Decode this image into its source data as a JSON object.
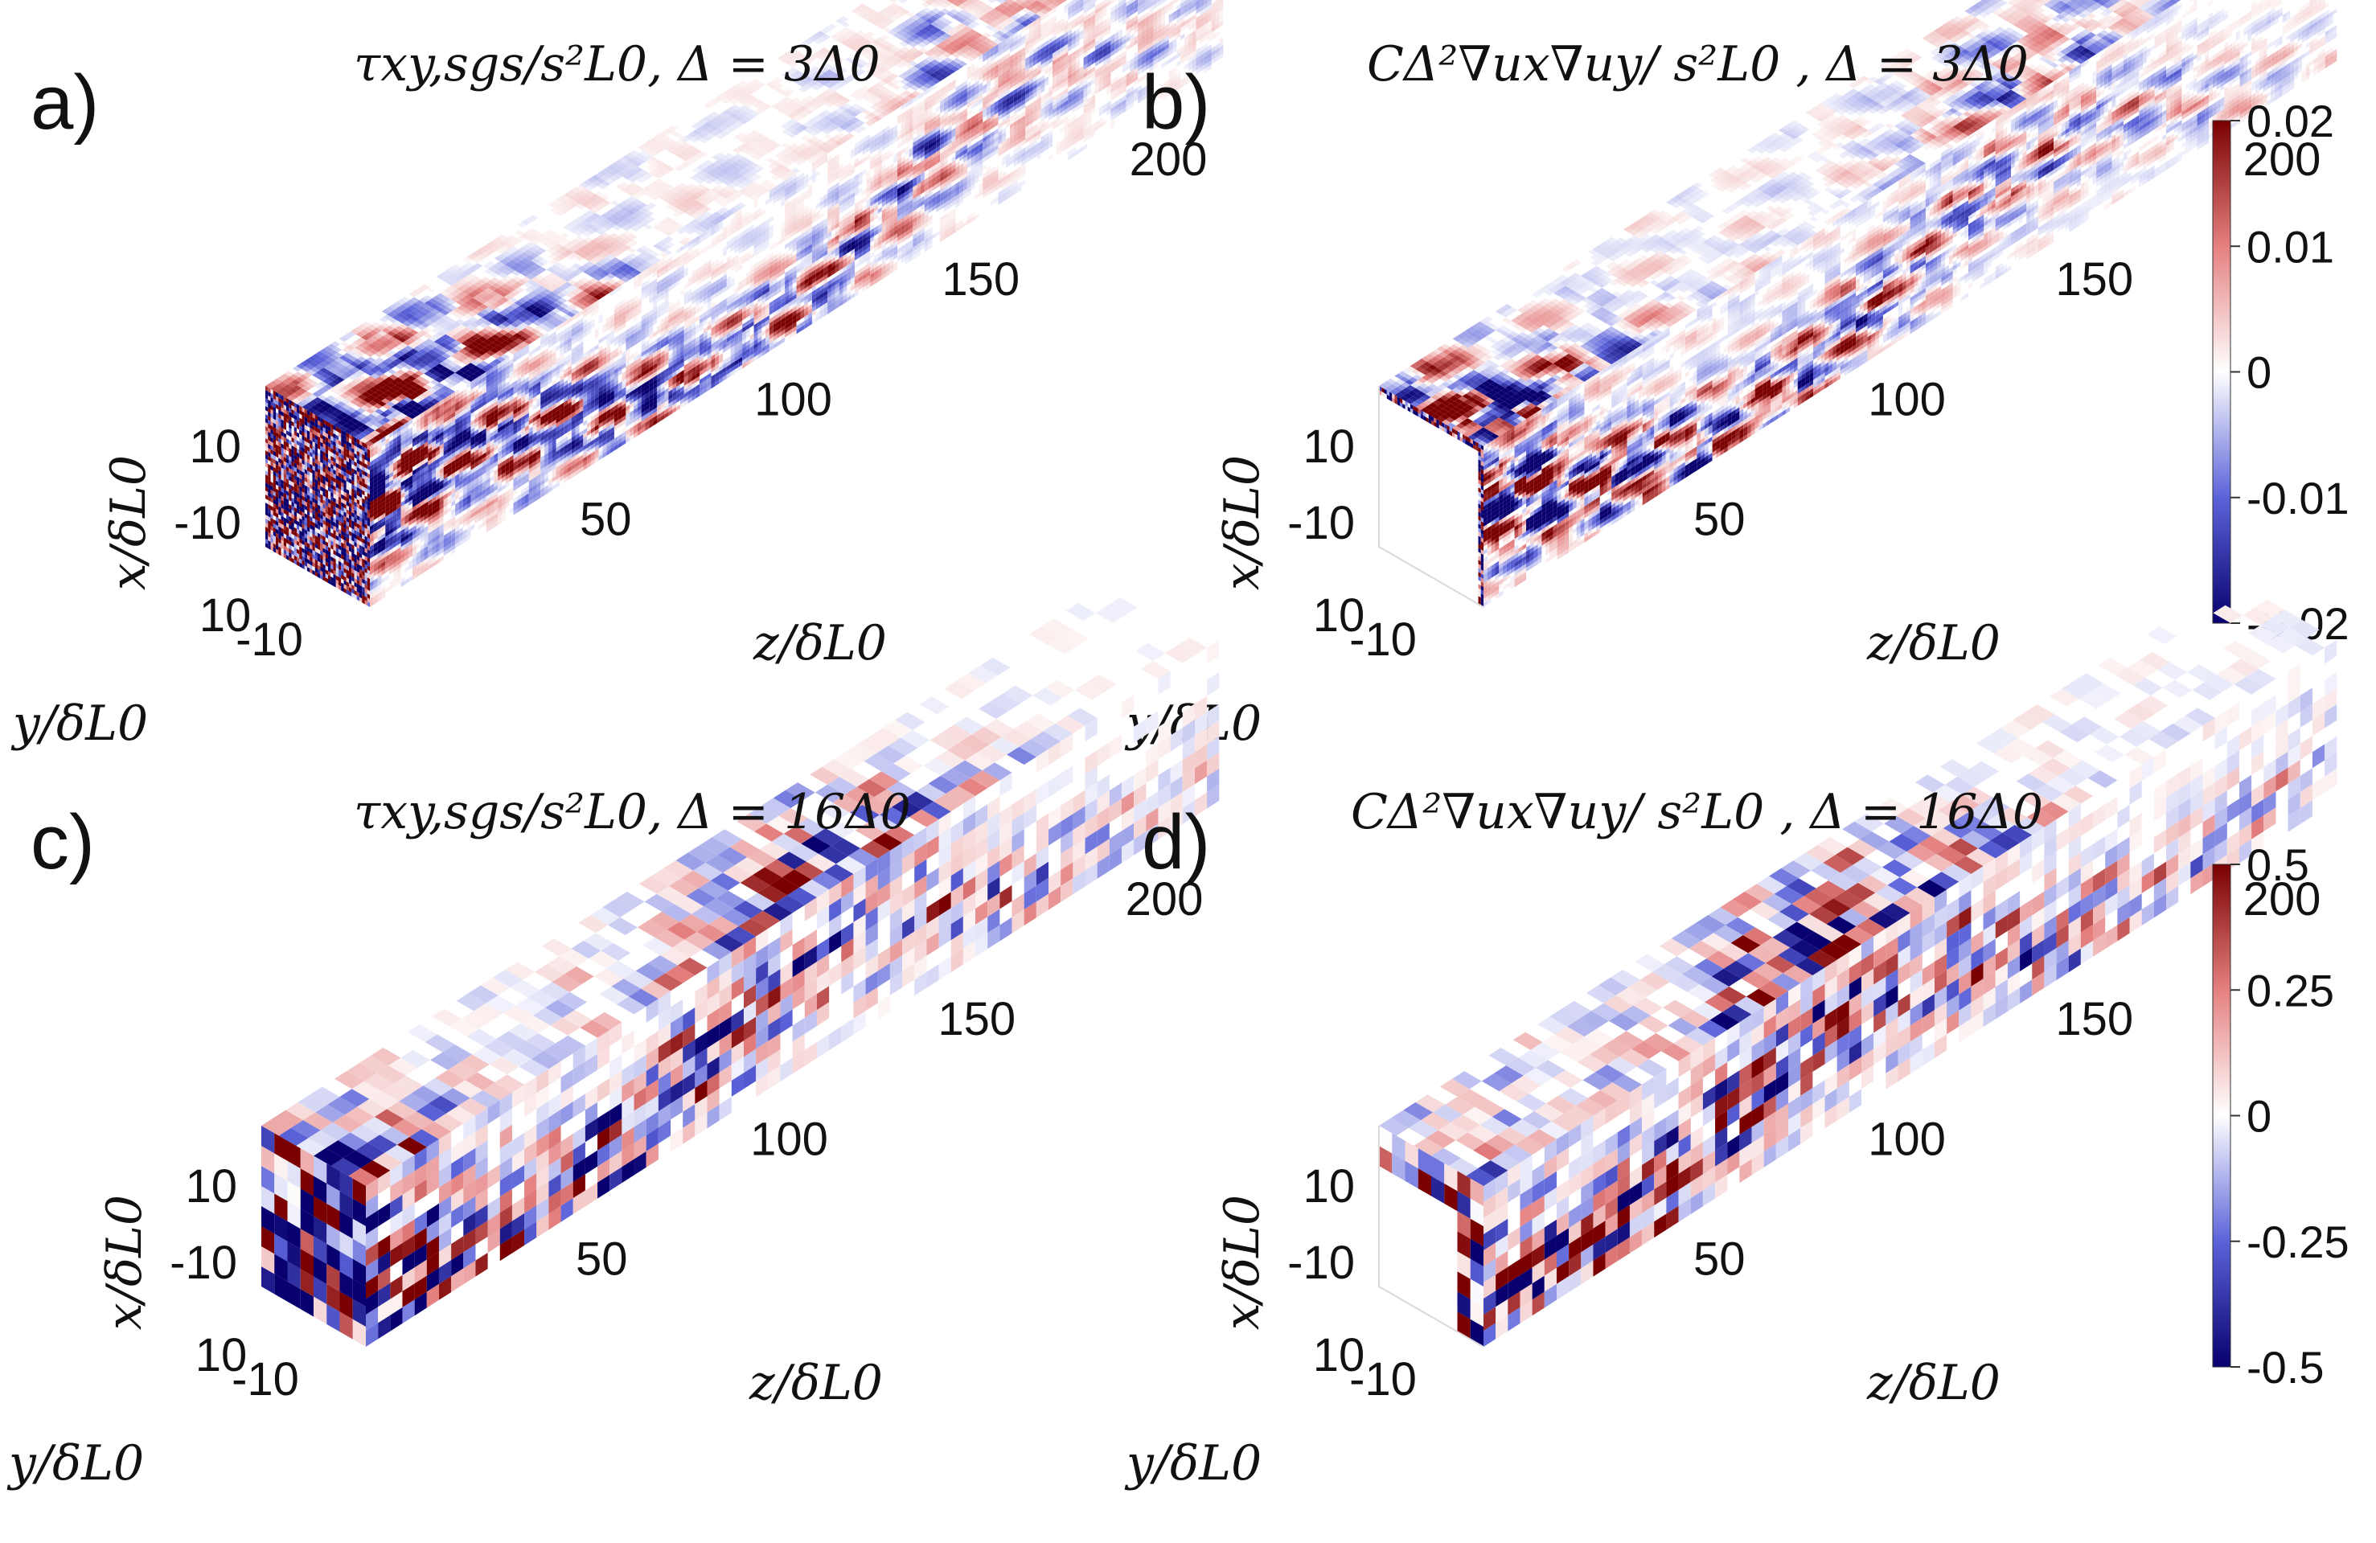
{
  "colors": {
    "negative": "#08006e",
    "mid_negative": "#5b63d9",
    "zero": "#ffffff",
    "mid_positive": "#e58080",
    "positive": "#7a0000"
  },
  "chart_data": [
    {
      "type": "heatmap",
      "panel": "a)",
      "title": "τxy,sgs/s²L0, Δ = 3Δ0",
      "xlabel": "z/δL0",
      "ylabel": "x/δL0",
      "zlabel": "y/δL0",
      "z_ticks": [
        "50",
        "100",
        "150",
        "200"
      ],
      "x_ticks": [
        "10",
        "-10"
      ],
      "y_ticks": [
        "10",
        "-10"
      ],
      "color_range": [
        -0.02,
        0.02
      ],
      "front_face": "full",
      "resolution": "fine"
    },
    {
      "type": "heatmap",
      "panel": "b)",
      "title": "CΔ²∇ux∇uy/ s²L0 , Δ = 3Δ0",
      "xlabel": "z/δL0",
      "ylabel": "x/δL0",
      "zlabel": "y/δL0",
      "z_ticks": [
        "50",
        "100",
        "150",
        "200"
      ],
      "x_ticks": [
        "10",
        "-10"
      ],
      "y_ticks": [
        "10",
        "-10"
      ],
      "color_range": [
        -0.02,
        0.02
      ],
      "front_face": "hollow",
      "resolution": "fine",
      "colorbar": {
        "ticks": [
          "0.02",
          "0.01",
          "0",
          "-0.01",
          "-0.02"
        ]
      }
    },
    {
      "type": "heatmap",
      "panel": "c)",
      "title": "τxy,sgs/s²L0, Δ = 16Δ0",
      "xlabel": "z/δL0",
      "ylabel": "x/δL0",
      "zlabel": "y/δL0",
      "z_ticks": [
        "50",
        "100",
        "150",
        "200"
      ],
      "x_ticks": [
        "10",
        "-10"
      ],
      "y_ticks": [
        "10",
        "-10"
      ],
      "color_range": [
        -0.5,
        0.5
      ],
      "front_face": "full",
      "resolution": "coarse"
    },
    {
      "type": "heatmap",
      "panel": "d)",
      "title": "CΔ²∇ux∇uy/ s²L0 , Δ = 16Δ0",
      "xlabel": "z/δL0",
      "ylabel": "x/δL0",
      "zlabel": "y/δL0",
      "z_ticks": [
        "50",
        "100",
        "150",
        "200"
      ],
      "x_ticks": [
        "10",
        "-10"
      ],
      "y_ticks": [
        "10",
        "-10"
      ],
      "color_range": [
        -0.5,
        0.5
      ],
      "front_face": "hollow",
      "resolution": "coarse",
      "colorbar": {
        "ticks": [
          "0.5",
          "0.25",
          "0",
          "-0.25",
          "-0.5"
        ]
      }
    }
  ]
}
